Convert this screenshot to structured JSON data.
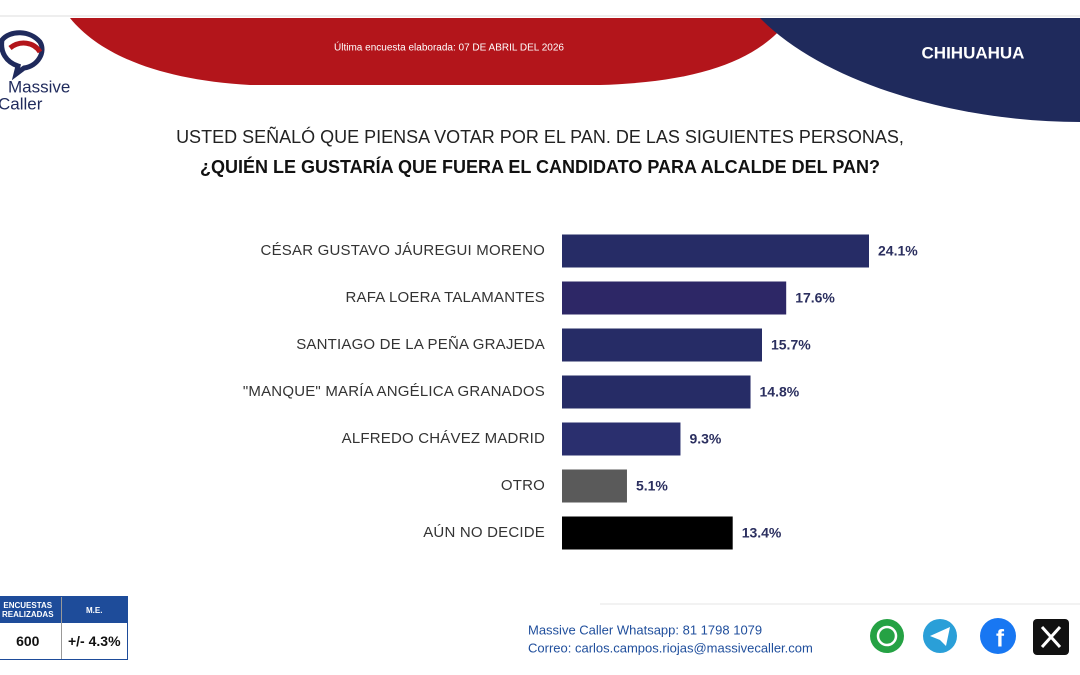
{
  "header": {
    "date": "Última encuesta elaborada: 07 DE ABRIL DEL 2026",
    "region": "CHIHUAHUA",
    "logo": [
      "Massive",
      "Caller"
    ]
  },
  "chart_data": {
    "type": "hbar",
    "title": [
      "USTED SEÑALÓ QUE PIENSA VOTAR POR EL PAN. DE LAS SIGUIENTES PERSONAS,",
      "¿QUIÉN LE GUSTARÍA QUE FUERA EL CANDIDATO PARA ALCALDE DEL PAN?"
    ],
    "categories": [
      "CÉSAR GUSTAVO JÁUREGUI MORENO",
      "RAFA LOERA TALAMANTES",
      "SANTIAGO DE LA PEÑA GRAJEDA",
      "\"MANQUE\" MARÍA ANGÉLICA GRANADOS",
      "ALFREDO CHÁVEZ MADRID",
      "OTRO",
      "AÚN NO DECIDE"
    ],
    "values": [
      24.1,
      17.6,
      15.7,
      14.8,
      9.3,
      5.1,
      13.4
    ],
    "value_labels": [
      "24.1%",
      "17.6%",
      "15.7%",
      "14.8%",
      "9.3%",
      "5.1%",
      "13.4%"
    ],
    "colors": [
      "#262c66",
      "#2d2766",
      "#262c66",
      "#262c66",
      "#2a2f6e",
      "#5a5a5a",
      "#000000"
    ]
  },
  "survey_table": {
    "headers": [
      "ENCUESTAS REALIZADAS",
      "M.E."
    ],
    "row": [
      600,
      "+/- 4.3%"
    ]
  },
  "footer": {
    "whatsapp": "Massive Caller Whatsapp: 81 1798 1079",
    "email": "Correo: carlos.campos.riojas@massivecaller.com"
  }
}
